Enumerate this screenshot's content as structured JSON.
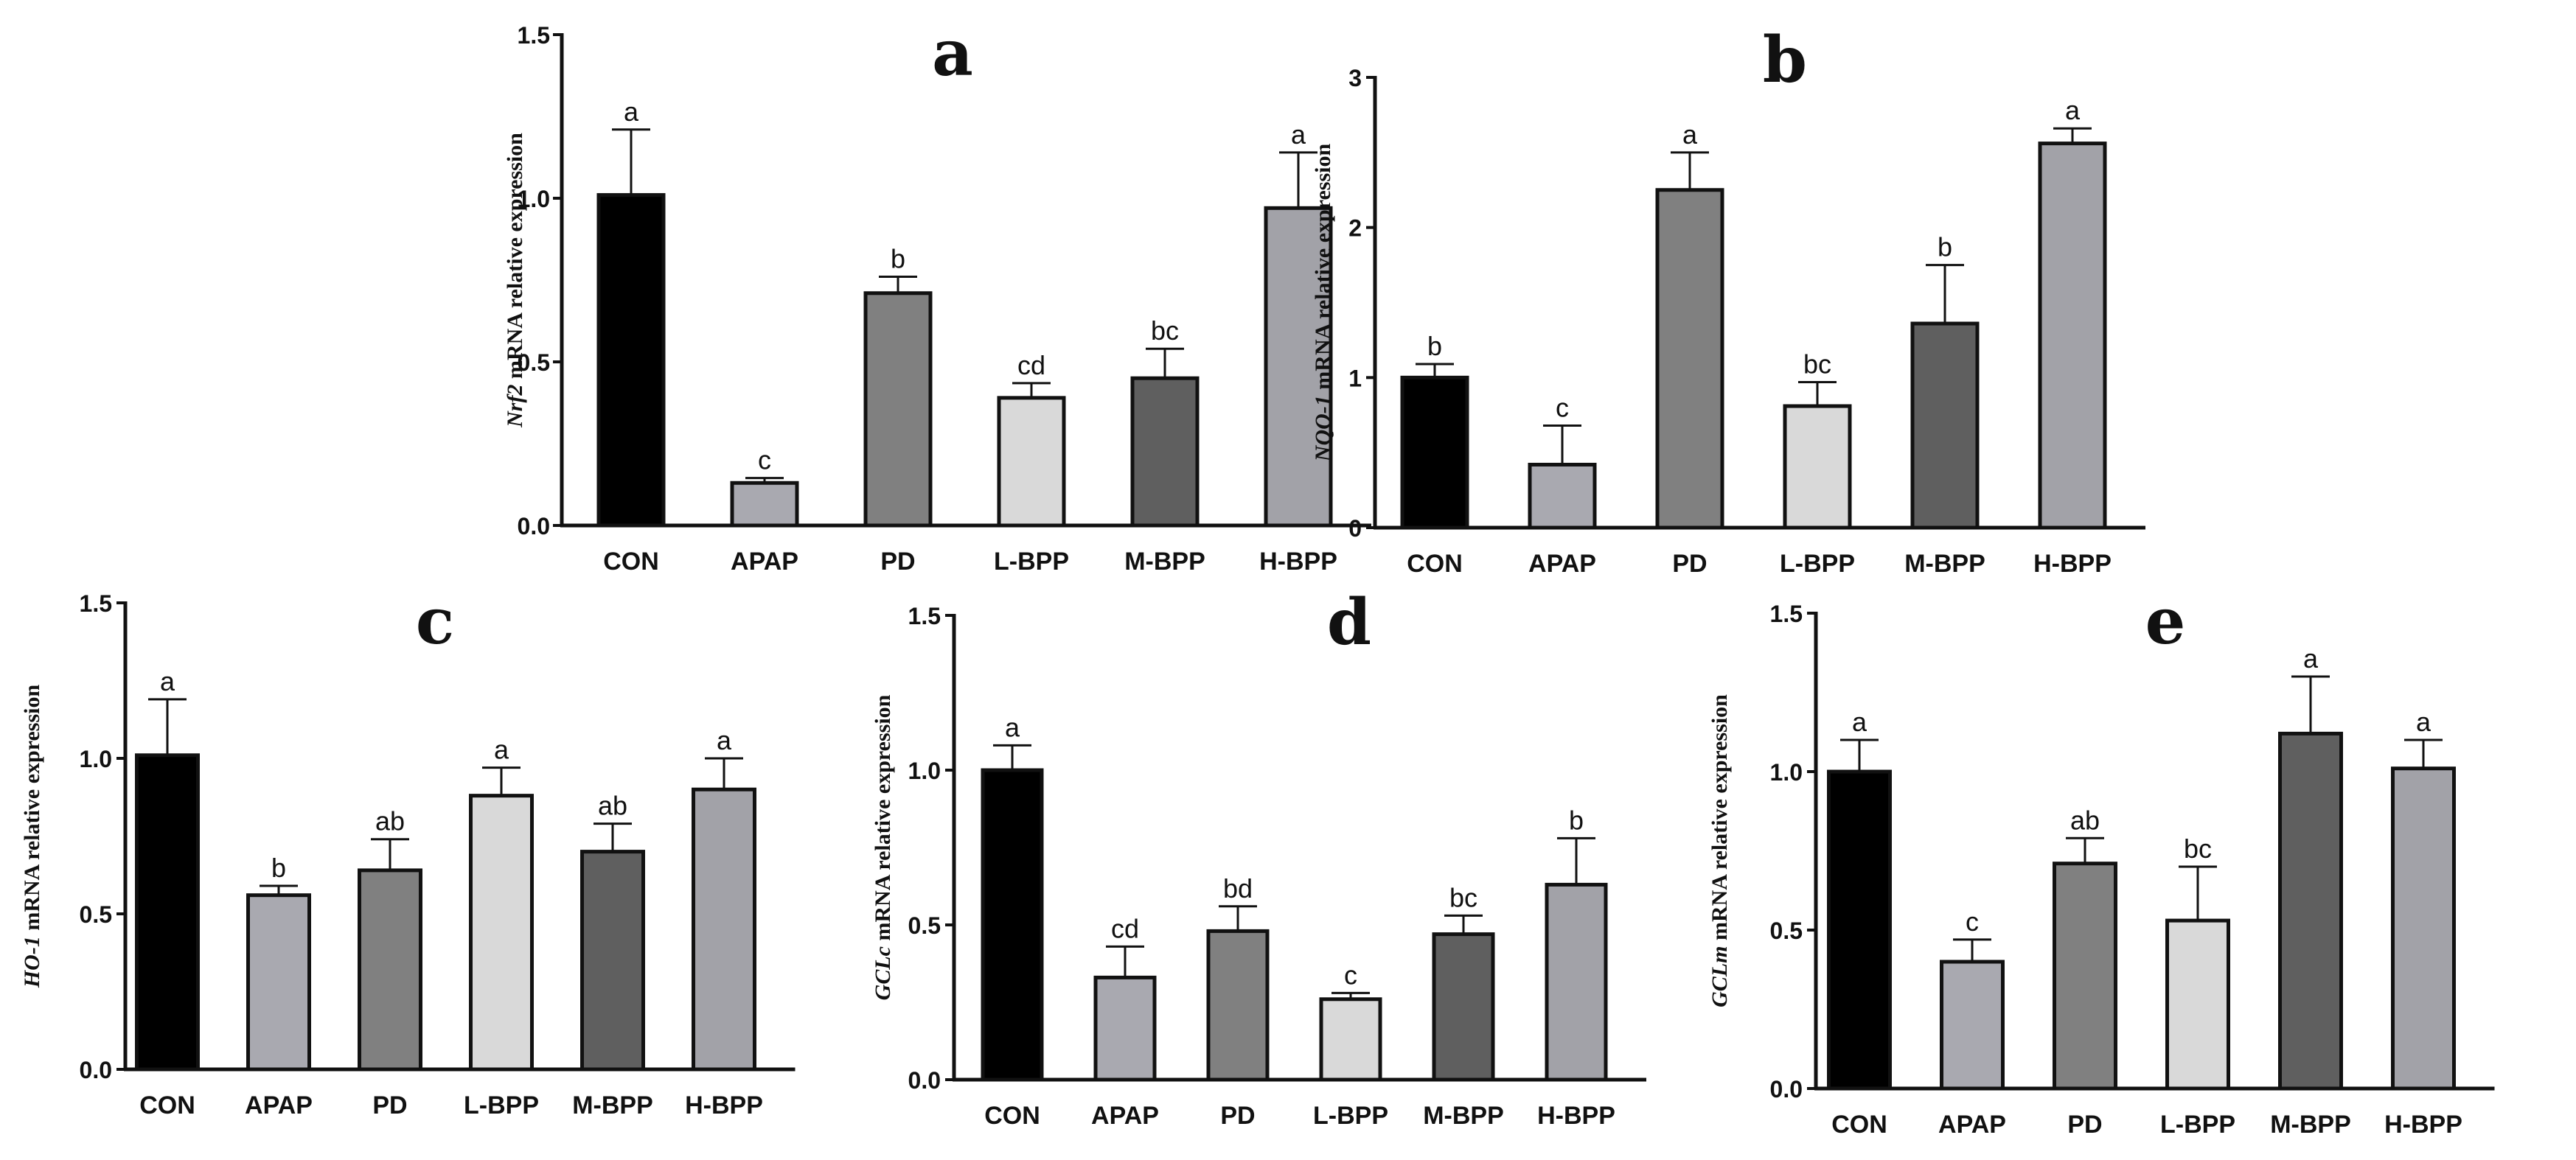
{
  "colors": {
    "CON": "#000000",
    "APAP": "#a9a9b0",
    "PD": "#808080",
    "L-BPP": "#d9d9d9",
    "M-BPP": "#5f5f5f",
    "H-BPP": "#a2a2a8"
  },
  "chart_data": [
    {
      "type": "bar",
      "panel": "a",
      "gene": "Nrf2",
      "ylabel_suffix": " mRNA relative expression",
      "categories": [
        "CON",
        "APAP",
        "PD",
        "L-BPP",
        "M-BPP",
        "H-BPP"
      ],
      "values": [
        1.01,
        0.13,
        0.71,
        0.39,
        0.45,
        0.97
      ],
      "errors": [
        0.2,
        0.015,
        0.05,
        0.045,
        0.09,
        0.17
      ],
      "significance": [
        "a",
        "c",
        "b",
        "cd",
        "bc",
        "a"
      ],
      "ylim": [
        0,
        1.5
      ],
      "yticks": [
        0,
        0.5,
        1.0,
        1.5
      ],
      "ytick_labels": [
        "0.0",
        "0.5",
        "1.0",
        "1.5"
      ]
    },
    {
      "type": "bar",
      "panel": "b",
      "gene": "NQO-1",
      "ylabel_suffix": " mRNA relative expression",
      "categories": [
        "CON",
        "APAP",
        "PD",
        "L-BPP",
        "M-BPP",
        "H-BPP"
      ],
      "values": [
        1.0,
        0.42,
        2.25,
        0.81,
        1.36,
        2.56
      ],
      "errors": [
        0.09,
        0.26,
        0.25,
        0.16,
        0.39,
        0.1
      ],
      "significance": [
        "b",
        "c",
        "a",
        "bc",
        "b",
        "a"
      ],
      "ylim": [
        0,
        3
      ],
      "yticks": [
        0,
        1,
        2,
        3
      ],
      "ytick_labels": [
        "0",
        "1",
        "2",
        "3"
      ]
    },
    {
      "type": "bar",
      "panel": "c",
      "gene": "HO-1",
      "ylabel_suffix": " mRNA relative expression",
      "categories": [
        "CON",
        "APAP",
        "PD",
        "L-BPP",
        "M-BPP",
        "H-BPP"
      ],
      "values": [
        1.01,
        0.56,
        0.64,
        0.88,
        0.7,
        0.9
      ],
      "errors": [
        0.18,
        0.03,
        0.1,
        0.09,
        0.09,
        0.1
      ],
      "significance": [
        "a",
        "b",
        "ab",
        "a",
        "ab",
        "a"
      ],
      "ylim": [
        0,
        1.5
      ],
      "yticks": [
        0,
        0.5,
        1.0,
        1.5
      ],
      "ytick_labels": [
        "0.0",
        "0.5",
        "1.0",
        "1.5"
      ]
    },
    {
      "type": "bar",
      "panel": "d",
      "gene": "GCLc",
      "ylabel_suffix": " mRNA relative expression",
      "categories": [
        "CON",
        "APAP",
        "PD",
        "L-BPP",
        "M-BPP",
        "H-BPP"
      ],
      "values": [
        1.0,
        0.33,
        0.48,
        0.26,
        0.47,
        0.63
      ],
      "errors": [
        0.08,
        0.1,
        0.08,
        0.02,
        0.06,
        0.15
      ],
      "significance": [
        "a",
        "cd",
        "bd",
        "c",
        "bc",
        "b"
      ],
      "ylim": [
        0,
        1.5
      ],
      "yticks": [
        0,
        0.5,
        1.0,
        1.5
      ],
      "ytick_labels": [
        "0.0",
        "0.5",
        "1.0",
        "1.5"
      ]
    },
    {
      "type": "bar",
      "panel": "e",
      "gene": "GCLm",
      "ylabel_suffix": " mRNA relative expression",
      "categories": [
        "CON",
        "APAP",
        "PD",
        "L-BPP",
        "M-BPP",
        "H-BPP"
      ],
      "values": [
        1.0,
        0.4,
        0.71,
        0.53,
        1.12,
        1.01
      ],
      "errors": [
        0.1,
        0.07,
        0.08,
        0.17,
        0.18,
        0.09
      ],
      "significance": [
        "a",
        "c",
        "ab",
        "bc",
        "a",
        "a"
      ],
      "ylim": [
        0,
        1.5
      ],
      "yticks": [
        0,
        0.5,
        1.0,
        1.5
      ],
      "ytick_labels": [
        "0.0",
        "0.5",
        "1.0",
        "1.5"
      ]
    }
  ]
}
